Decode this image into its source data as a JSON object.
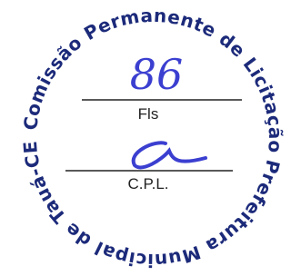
{
  "stamp": {
    "top_text": "Comissão Permanente de Licitação",
    "bottom_text": "Prefeitura Municipal de Tauá-CE",
    "page_number": "86",
    "page_label": "Fls",
    "signature_label": "C.P.L."
  }
}
